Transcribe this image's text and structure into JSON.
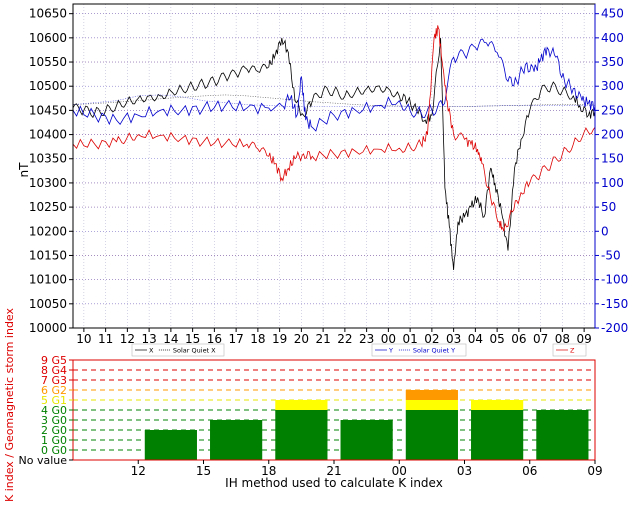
{
  "chart_data": [
    {
      "type": "line",
      "ylabel": "nT",
      "left_axis": {
        "ylim": [
          10000,
          10670
        ],
        "ticks": [
          10000,
          10050,
          10100,
          10150,
          10200,
          10250,
          10300,
          10350,
          10400,
          10450,
          10500,
          10550,
          10600,
          10650
        ],
        "color": "#000000"
      },
      "right_axis": {
        "ylim": [
          -200,
          470
        ],
        "ticks": [
          -200,
          -150,
          -100,
          -50,
          0,
          50,
          100,
          150,
          200,
          250,
          300,
          350,
          400,
          450
        ],
        "color": "#0000cc"
      },
      "x_tick_labels": [
        "10",
        "11",
        "12",
        "13",
        "14",
        "15",
        "16",
        "17",
        "18",
        "19",
        "20",
        "21",
        "22",
        "23",
        "00",
        "01",
        "02",
        "03",
        "04",
        "05",
        "06",
        "07",
        "08",
        "09"
      ],
      "grid": true,
      "legends": [
        {
          "position": "bottom-left",
          "entries": [
            {
              "label": "X",
              "color": "#000000"
            },
            {
              "label": "Solar Quiet X",
              "color": "#000000"
            }
          ]
        },
        {
          "position": "bottom-center",
          "entries": [
            {
              "label": "Y",
              "color": "#0000cc"
            },
            {
              "label": "Solar Quiet Y",
              "color": "#0000cc"
            }
          ]
        },
        {
          "position": "bottom-right",
          "entries": [
            {
              "label": "Z",
              "color": "#dd0000"
            }
          ]
        }
      ],
      "series": [
        {
          "name": "X",
          "color": "#000000",
          "axis": "left",
          "points": [
            [
              0,
              10455
            ],
            [
              0.5,
              10450
            ],
            [
              1,
              10445
            ],
            [
              1.5,
              10450
            ],
            [
              2,
              10460
            ],
            [
              2.5,
              10470
            ],
            [
              3,
              10475
            ],
            [
              3.5,
              10480
            ],
            [
              4,
              10480
            ],
            [
              4.5,
              10490
            ],
            [
              5,
              10495
            ],
            [
              5.5,
              10500
            ],
            [
              6,
              10505
            ],
            [
              6.5,
              10510
            ],
            [
              7,
              10520
            ],
            [
              7.5,
              10525
            ],
            [
              8,
              10535
            ],
            [
              8.5,
              10530
            ],
            [
              9,
              10540
            ],
            [
              9.3,
              10565
            ],
            [
              9.6,
              10600
            ],
            [
              9.9,
              10570
            ],
            [
              10.2,
              10470
            ],
            [
              10.6,
              10440
            ],
            [
              11.0,
              10470
            ],
            [
              11.5,
              10490
            ],
            [
              12,
              10490
            ],
            [
              12.5,
              10480
            ],
            [
              13,
              10490
            ],
            [
              13.5,
              10495
            ],
            [
              14,
              10500
            ],
            [
              14.5,
              10495
            ],
            [
              15,
              10480
            ],
            [
              15.4,
              10470
            ],
            [
              15.8,
              10450
            ],
            [
              16.2,
              10430
            ],
            [
              16.5,
              10440
            ],
            [
              16.9,
              10600
            ],
            [
              17.1,
              10290
            ],
            [
              17.3,
              10210
            ],
            [
              17.5,
              10120
            ],
            [
              17.7,
              10220
            ],
            [
              18.0,
              10230
            ],
            [
              18.3,
              10250
            ],
            [
              18.6,
              10270
            ],
            [
              18.9,
              10230
            ],
            [
              19.2,
              10330
            ],
            [
              19.4,
              10300
            ],
            [
              19.7,
              10240
            ],
            [
              20.0,
              10160
            ],
            [
              20.3,
              10330
            ],
            [
              20.6,
              10390
            ],
            [
              21.0,
              10450
            ],
            [
              21.5,
              10490
            ],
            [
              22,
              10500
            ],
            [
              22.5,
              10490
            ],
            [
              23,
              10480
            ],
            [
              23.3,
              10460
            ],
            [
              23.7,
              10440
            ],
            [
              24,
              10450
            ]
          ]
        },
        {
          "name": "Solar Quiet X",
          "color": "#000000",
          "axis": "left",
          "points": [
            [
              0,
              10462
            ],
            [
              1,
              10464
            ],
            [
              2,
              10467
            ],
            [
              3,
              10470
            ],
            [
              4,
              10474
            ],
            [
              5,
              10477
            ],
            [
              6,
              10480
            ],
            [
              7,
              10482
            ],
            [
              8,
              10480
            ],
            [
              9,
              10476
            ],
            [
              10,
              10472
            ],
            [
              11,
              10468
            ],
            [
              12,
              10465
            ],
            [
              13,
              10462
            ],
            [
              14,
              10460
            ],
            [
              15,
              10459
            ],
            [
              16,
              10458
            ],
            [
              17,
              10458
            ],
            [
              18,
              10458
            ],
            [
              19,
              10459
            ],
            [
              20,
              10460
            ],
            [
              21,
              10461
            ],
            [
              22,
              10462
            ],
            [
              23,
              10462
            ],
            [
              24,
              10462
            ]
          ]
        },
        {
          "name": "Y",
          "color": "#0000cc",
          "axis": "right",
          "points": [
            [
              0,
              250
            ],
            [
              1,
              240
            ],
            [
              2,
              230
            ],
            [
              3,
              240
            ],
            [
              4,
              250
            ],
            [
              5,
              250
            ],
            [
              6,
              255
            ],
            [
              7,
              260
            ],
            [
              8,
              255
            ],
            [
              9,
              255
            ],
            [
              9.6,
              260
            ],
            [
              10.0,
              275
            ],
            [
              10.3,
              240
            ],
            [
              10.5,
              320
            ],
            [
              10.7,
              230
            ],
            [
              11,
              215
            ],
            [
              12,
              240
            ],
            [
              13,
              250
            ],
            [
              14,
              260
            ],
            [
              15,
              270
            ],
            [
              15.5,
              250
            ],
            [
              16,
              245
            ],
            [
              16.5,
              250
            ],
            [
              17,
              260
            ],
            [
              17.5,
              360
            ],
            [
              18.0,
              365
            ],
            [
              18.5,
              380
            ],
            [
              19,
              390
            ],
            [
              19.5,
              370
            ],
            [
              20,
              310
            ],
            [
              20.4,
              310
            ],
            [
              20.8,
              345
            ],
            [
              21.2,
              330
            ],
            [
              21.5,
              355
            ],
            [
              21.8,
              380
            ],
            [
              22.2,
              360
            ],
            [
              22.6,
              310
            ],
            [
              23,
              295
            ],
            [
              23.4,
              270
            ],
            [
              23.7,
              265
            ],
            [
              24,
              260
            ]
          ]
        },
        {
          "name": "Solar Quiet Y",
          "color": "#0000cc",
          "axis": "right",
          "points": [
            [
              0,
              262
            ],
            [
              2,
              270
            ],
            [
              3,
              280
            ],
            [
              4,
              282
            ],
            [
              5,
              278
            ],
            [
              6,
              270
            ],
            [
              8,
              262
            ],
            [
              10,
              258
            ],
            [
              12,
              258
            ],
            [
              14,
              258
            ],
            [
              16,
              258
            ],
            [
              18,
              258
            ],
            [
              20,
              260
            ],
            [
              22,
              260
            ],
            [
              24,
              260
            ]
          ]
        },
        {
          "name": "Z",
          "color": "#dd0000",
          "axis": "left",
          "points": [
            [
              0,
              10380
            ],
            [
              1,
              10380
            ],
            [
              2,
              10385
            ],
            [
              2.5,
              10395
            ],
            [
              3,
              10400
            ],
            [
              4,
              10398
            ],
            [
              5,
              10392
            ],
            [
              6,
              10385
            ],
            [
              7,
              10382
            ],
            [
              8,
              10380
            ],
            [
              8.5,
              10370
            ],
            [
              9.0,
              10355
            ],
            [
              9.3,
              10340
            ],
            [
              9.6,
              10310
            ],
            [
              9.9,
              10330
            ],
            [
              10.2,
              10350
            ],
            [
              10.6,
              10360
            ],
            [
              11,
              10355
            ],
            [
              12,
              10360
            ],
            [
              13,
              10365
            ],
            [
              14,
              10370
            ],
            [
              15,
              10372
            ],
            [
              15.5,
              10375
            ],
            [
              16,
              10380
            ],
            [
              16.3,
              10400
            ],
            [
              16.6,
              10600
            ],
            [
              16.8,
              10620
            ],
            [
              17.0,
              10540
            ],
            [
              17.2,
              10470
            ],
            [
              17.5,
              10400
            ],
            [
              18,
              10390
            ],
            [
              18.3,
              10380
            ],
            [
              18.6,
              10370
            ],
            [
              18.8,
              10340
            ],
            [
              19.2,
              10270
            ],
            [
              19.6,
              10220
            ],
            [
              19.8,
              10200
            ],
            [
              20.2,
              10240
            ],
            [
              20.6,
              10280
            ],
            [
              21,
              10300
            ],
            [
              21.5,
              10320
            ],
            [
              22,
              10340
            ],
            [
              22.5,
              10360
            ],
            [
              23,
              10380
            ],
            [
              23.5,
              10405
            ],
            [
              24,
              10415
            ]
          ]
        }
      ]
    },
    {
      "type": "bar",
      "ylabel": "K index / Geomagnetic storm index",
      "xlabel": "IH method used to calculate K index",
      "x_tick_labels": [
        "12",
        "15",
        "18",
        "21",
        "00",
        "03",
        "06",
        "09"
      ],
      "y_tick_labels": [
        "No value",
        "0 G0",
        "1 G0",
        "2 G0",
        "3 G0",
        "4 G0",
        "5 G1",
        "6 G2",
        "7 G3",
        "8 G4",
        "9 G5"
      ],
      "y_tick_colors": [
        "#000000",
        "#008000",
        "#008000",
        "#008000",
        "#008000",
        "#008000",
        "#e6e600",
        "#ff9900",
        "#dd0000",
        "#dd0000",
        "#dd0000"
      ],
      "ylim": [
        -1,
        9
      ],
      "categories": [
        "09-12",
        "12-15",
        "15-18",
        "18-21",
        "21-00",
        "00-03",
        "03-06",
        "06-09"
      ],
      "values": [
        null,
        2,
        3,
        5,
        3,
        6,
        5,
        4
      ],
      "segments": [
        [],
        [
          {
            "from": -1,
            "to": 2,
            "color": "#008000"
          }
        ],
        [
          {
            "from": -1,
            "to": 3,
            "color": "#008000"
          }
        ],
        [
          {
            "from": -1,
            "to": 4,
            "color": "#008000"
          },
          {
            "from": 4,
            "to": 5,
            "color": "#ffff00"
          }
        ],
        [
          {
            "from": -1,
            "to": 3,
            "color": "#008000"
          }
        ],
        [
          {
            "from": -1,
            "to": 4,
            "color": "#008000"
          },
          {
            "from": 4,
            "to": 5,
            "color": "#ffff00"
          },
          {
            "from": 5,
            "to": 6,
            "color": "#ff9900"
          }
        ],
        [
          {
            "from": -1,
            "to": 4,
            "color": "#008000"
          },
          {
            "from": 4,
            "to": 5,
            "color": "#ffff00"
          }
        ],
        [
          {
            "from": -1,
            "to": 4,
            "color": "#008000"
          }
        ]
      ],
      "frame_color": "#dd0000"
    }
  ]
}
